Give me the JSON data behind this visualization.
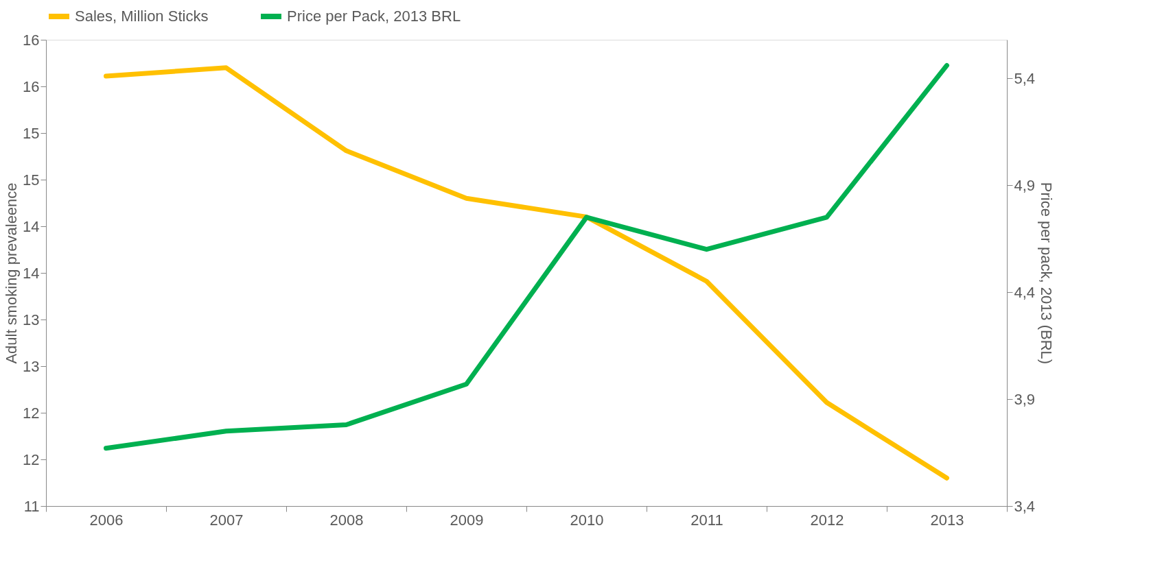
{
  "chart_data": {
    "type": "line",
    "ylabel": "Adult smoking prevaleence",
    "y2label": "Price per pack, 2013 (BRL)",
    "categories": [
      "2006",
      "2007",
      "2008",
      "2009",
      "2010",
      "2011",
      "2012",
      "2013"
    ],
    "series": [
      {
        "name": "Sales, Million Sticks",
        "color": "#ffc000",
        "values": [
          15.61,
          15.7,
          14.81,
          14.3,
          14.1,
          13.41,
          12.11,
          11.3
        ]
      },
      {
        "name": "Price per Pack, 2013 BRL",
        "color": "#00b050",
        "axis": "y2",
        "values": [
          3.67,
          3.75,
          3.78,
          3.97,
          4.75,
          4.6,
          4.75,
          5.46
        ]
      }
    ],
    "ylim": [
      11,
      16
    ],
    "yticks": [
      11,
      {
        "value": 11.5,
        "label": "12"
      },
      12,
      {
        "value": 12.5,
        "label": "13"
      },
      13,
      {
        "value": 13.5,
        "label": "14"
      },
      14,
      {
        "value": 14.5,
        "label": "15"
      },
      15,
      {
        "value": 15.5,
        "label": "16"
      },
      16
    ],
    "y2lim": [
      3.4,
      5.58
    ],
    "y2ticks": [
      {
        "value": 3.4,
        "label": "3,4"
      },
      {
        "value": 3.9,
        "label": "3,9"
      },
      {
        "value": 4.4,
        "label": "4,4"
      },
      {
        "value": 4.9,
        "label": "4,9"
      },
      {
        "value": 5.4,
        "label": "5,4"
      }
    ],
    "legend": "top",
    "grid": false,
    "line_style": "solid",
    "marker": "none"
  }
}
